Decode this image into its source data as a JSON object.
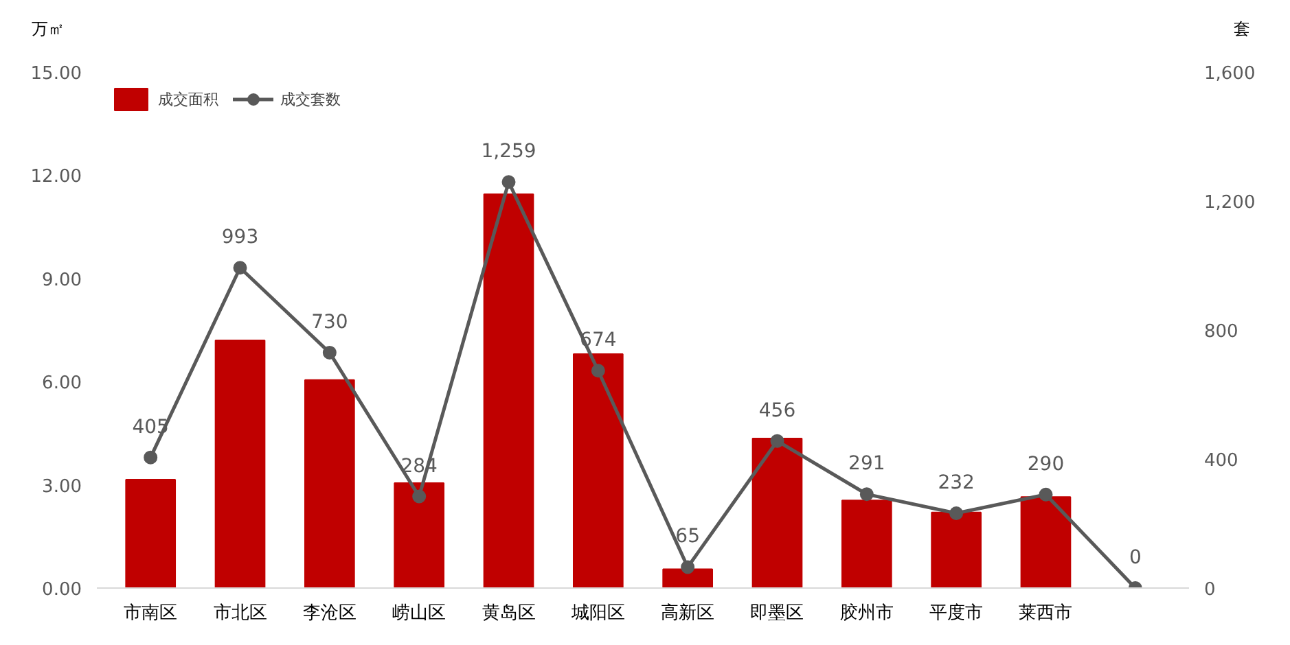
{
  "chart_data": {
    "type": "bar",
    "ylabel": "万㎡",
    "y2label": "套",
    "categories": [
      "市南区",
      "市北区",
      "李沧区",
      "崂山区",
      "黄岛区",
      "城阳区",
      "高新区",
      "即墨区",
      "胶州市",
      "平度市",
      "莱西市",
      null
    ],
    "series": [
      {
        "name": "成交面积",
        "color": "#c00000",
        "values": [
          3.15,
          7.2,
          6.05,
          3.05,
          11.45,
          6.8,
          0.55,
          4.35,
          2.55,
          2.2,
          2.65,
          null
        ]
      },
      {
        "name": "成交套数",
        "type": "line",
        "axis": "y2",
        "color": "#595959",
        "marker": "circle",
        "values": [
          405,
          993,
          730,
          284,
          1259,
          674,
          65,
          456,
          291,
          232,
          290,
          0
        ],
        "value_labels": [
          "405",
          "993",
          "730",
          "284",
          "1,259",
          "674",
          "65",
          "456",
          "291",
          "232",
          "290",
          "0"
        ]
      }
    ],
    "ylim": [
      0,
      15
    ],
    "yticks": [
      {
        "value": 0,
        "label": "0.00"
      },
      {
        "value": 3,
        "label": "3.00"
      },
      {
        "value": 6,
        "label": "6.00"
      },
      {
        "value": 9,
        "label": "9.00"
      },
      {
        "value": 12,
        "label": "12.00"
      },
      {
        "value": 15,
        "label": "15.00"
      }
    ],
    "y2lim": [
      0,
      1600
    ],
    "y2ticks": [
      0,
      400,
      800,
      {
        "value": 1200,
        "label": "1,200"
      },
      {
        "value": 1600,
        "label": "1,600"
      }
    ],
    "legend": "top left",
    "grid": false
  }
}
